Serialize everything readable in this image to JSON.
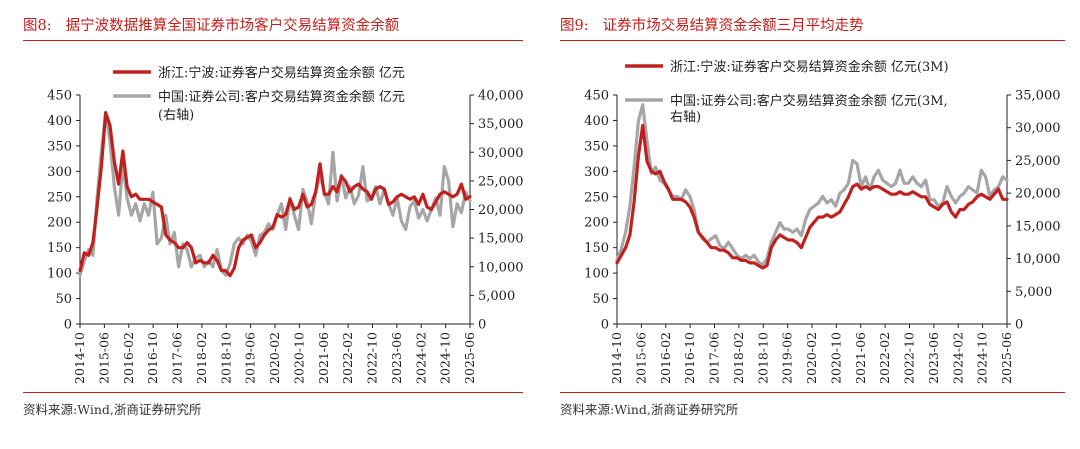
{
  "header_fragment": "...",
  "chart_data": [
    {
      "type": "line",
      "figure_label": "图8:",
      "title": "据宁波数据推算全国证券市场客户交易结算资金余额",
      "source_label": "资料来源:",
      "source_text": "Wind,浙商证券研究所",
      "x_tick_labels": [
        "2014-10",
        "2015-06",
        "2016-02",
        "2016-10",
        "2017-06",
        "2018-02",
        "2018-10",
        "2019-06",
        "2020-02",
        "2020-10",
        "2021-06",
        "2022-02",
        "2022-10",
        "2023-06",
        "2024-02",
        "2024-10",
        "2025-06"
      ],
      "y_left_ticks": [
        0,
        50,
        100,
        150,
        200,
        250,
        300,
        350,
        400,
        450
      ],
      "y_left_range": [
        0,
        450
      ],
      "y_right_ticks": [
        "0",
        "5,000",
        "10,000",
        "15,000",
        "20,000",
        "25,000",
        "30,000",
        "35,000",
        "40,000"
      ],
      "y_right_range": [
        0,
        40000
      ],
      "legend_position": "top",
      "series": [
        {
          "name": "浙江:宁波:证券客户交易结算资金余额 亿元",
          "axis": "left",
          "color": "#c0201e",
          "values": [
            105,
            140,
            135,
            160,
            230,
            310,
            415,
            390,
            320,
            275,
            340,
            270,
            250,
            255,
            245,
            245,
            245,
            240,
            235,
            230,
            175,
            165,
            160,
            150,
            150,
            160,
            150,
            120,
            125,
            120,
            120,
            135,
            125,
            105,
            105,
            95,
            110,
            150,
            165,
            170,
            175,
            150,
            160,
            175,
            185,
            190,
            215,
            210,
            215,
            245,
            225,
            230,
            255,
            230,
            235,
            260,
            315,
            255,
            255,
            270,
            260,
            290,
            280,
            260,
            270,
            275,
            265,
            260,
            245,
            265,
            270,
            265,
            235,
            240,
            250,
            255,
            250,
            245,
            250,
            235,
            255,
            230,
            225,
            240,
            255,
            260,
            255,
            250,
            255,
            275,
            245,
            250
          ]
        },
        {
          "name": "中国:证券公司:客户交易结算资金余额 亿元 (右轴)",
          "axis": "right",
          "color": "#a6a6a6",
          "values": [
            8500,
            11000,
            13000,
            12000,
            22000,
            30000,
            37000,
            32000,
            24000,
            19000,
            28000,
            22000,
            19000,
            21000,
            18000,
            21000,
            19000,
            23000,
            14000,
            15000,
            19000,
            14000,
            16000,
            10000,
            14000,
            13000,
            10000,
            11500,
            12000,
            10000,
            11000,
            10000,
            13000,
            9500,
            8500,
            10500,
            14000,
            15000,
            14000,
            15500,
            14500,
            12000,
            15500,
            16000,
            17500,
            16500,
            19000,
            21000,
            16500,
            22000,
            19000,
            16500,
            23500,
            21500,
            17500,
            23000,
            26000,
            23000,
            21000,
            30000,
            21500,
            26000,
            22000,
            24000,
            21000,
            22500,
            27500,
            21500,
            22000,
            24000,
            21000,
            23500,
            21000,
            19000,
            22000,
            18000,
            16500,
            20500,
            21500,
            18500,
            20000,
            18000,
            20000,
            22000,
            19000,
            27500,
            25000,
            17000,
            21000,
            19500,
            23000,
            21500
          ]
        }
      ],
      "legend_lines": [
        [
          "浙江:宁波:证券客户交易结算资金余额 亿元"
        ],
        [
          "中国:证券公司:客户交易结算资金余额 亿元",
          "(右轴)"
        ]
      ]
    },
    {
      "type": "line",
      "figure_label": "图9:",
      "title": "证券市场交易结算资金余额三月平均走势",
      "source_label": "资料来源:",
      "source_text": "Wind,浙商证券研究所",
      "x_tick_labels": [
        "2014-10",
        "2015-06",
        "2016-02",
        "2016-10",
        "2017-06",
        "2018-02",
        "2018-10",
        "2019-06",
        "2020-02",
        "2020-10",
        "2021-06",
        "2022-02",
        "2022-10",
        "2023-06",
        "2024-02",
        "2024-10",
        "2025-06"
      ],
      "y_left_ticks": [
        0,
        50,
        100,
        150,
        200,
        250,
        300,
        350,
        400,
        450
      ],
      "y_left_range": [
        0,
        450
      ],
      "y_right_ticks": [
        "0",
        "5,000",
        "10,000",
        "15,000",
        "20,000",
        "25,000",
        "30,000",
        "35,000"
      ],
      "y_right_range": [
        0,
        35000
      ],
      "legend_position": "top",
      "series": [
        {
          "name": "浙江:宁波:证券客户交易结算资金余额 亿元 (3M)",
          "axis": "left",
          "color": "#c0201e",
          "values": [
            120,
            135,
            150,
            175,
            240,
            330,
            390,
            320,
            300,
            295,
            300,
            280,
            265,
            245,
            245,
            245,
            240,
            230,
            210,
            180,
            170,
            160,
            150,
            150,
            145,
            145,
            140,
            130,
            130,
            125,
            125,
            120,
            120,
            115,
            110,
            115,
            150,
            165,
            175,
            170,
            165,
            165,
            160,
            150,
            170,
            190,
            200,
            210,
            210,
            215,
            210,
            215,
            220,
            235,
            250,
            270,
            275,
            265,
            270,
            265,
            270,
            270,
            265,
            260,
            255,
            255,
            260,
            255,
            255,
            260,
            255,
            250,
            250,
            235,
            230,
            225,
            235,
            240,
            220,
            210,
            225,
            225,
            235,
            240,
            250,
            255,
            250,
            245,
            255,
            265,
            245,
            245
          ]
        },
        {
          "name": "中国:证券公司:客户交易结算资金余额 亿元 (3M, 右轴)",
          "axis": "right",
          "color": "#a6a6a6",
          "values": [
            9800,
            11500,
            14000,
            18000,
            24000,
            31000,
            33500,
            28000,
            23000,
            24000,
            22000,
            21500,
            20500,
            19500,
            19500,
            19000,
            20500,
            19500,
            17500,
            14000,
            13000,
            12500,
            13000,
            13500,
            12000,
            11500,
            12500,
            11500,
            10500,
            10000,
            10500,
            10000,
            10500,
            9500,
            9000,
            10000,
            12500,
            14000,
            15500,
            14500,
            14500,
            14000,
            14500,
            13500,
            16000,
            17500,
            18000,
            18500,
            19500,
            18500,
            19000,
            18000,
            20000,
            20500,
            21500,
            25000,
            24500,
            21000,
            22500,
            20500,
            22500,
            23500,
            22000,
            21500,
            21000,
            21500,
            23500,
            21500,
            21500,
            22500,
            21500,
            21000,
            22000,
            19000,
            19000,
            18000,
            18500,
            21000,
            19500,
            18500,
            19500,
            20000,
            21000,
            20500,
            20000,
            23500,
            22500,
            19500,
            20500,
            21000,
            22500,
            22000
          ]
        }
      ],
      "legend_lines": [
        [
          "浙江:宁波:证券客户交易结算资金余额 亿元(3M)"
        ],
        [
          "中国:证券公司:客户交易结算资金余额 亿元(3M,",
          "右轴)"
        ]
      ]
    }
  ]
}
